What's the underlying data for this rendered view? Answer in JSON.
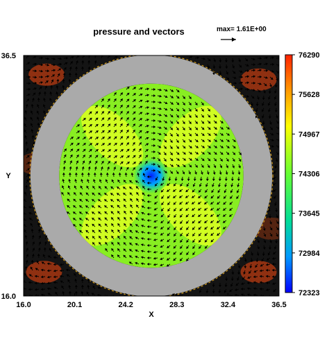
{
  "chart_data": {
    "type": "heatmap",
    "title": "pressure and vectors",
    "vector_scale_label": "max= 1.61E+00",
    "xlabel": "X",
    "ylabel": "Y",
    "xlim": [
      16.0,
      36.5
    ],
    "ylim": [
      16.0,
      36.5
    ],
    "x_ticks": [
      "16.0",
      "20.1",
      "24.2",
      "28.3",
      "32.4",
      "36.5"
    ],
    "y_ticks": [
      "36.5",
      "16.0"
    ],
    "colorbar": {
      "ticks": [
        "76290",
        "75628",
        "74967",
        "74306",
        "73645",
        "72984",
        "72323"
      ],
      "range": [
        72323,
        76290
      ],
      "colors": [
        "#ff3300",
        "#ffff00",
        "#66ff33",
        "#00dd88",
        "#00aaff",
        "#0000ff"
      ]
    },
    "geometry": {
      "center": [
        26.25,
        26.25
      ],
      "annulus_inner_radius": 7.4,
      "annulus_outer_radius": 9.7,
      "annulus_color": "#aaaaaa"
    }
  }
}
